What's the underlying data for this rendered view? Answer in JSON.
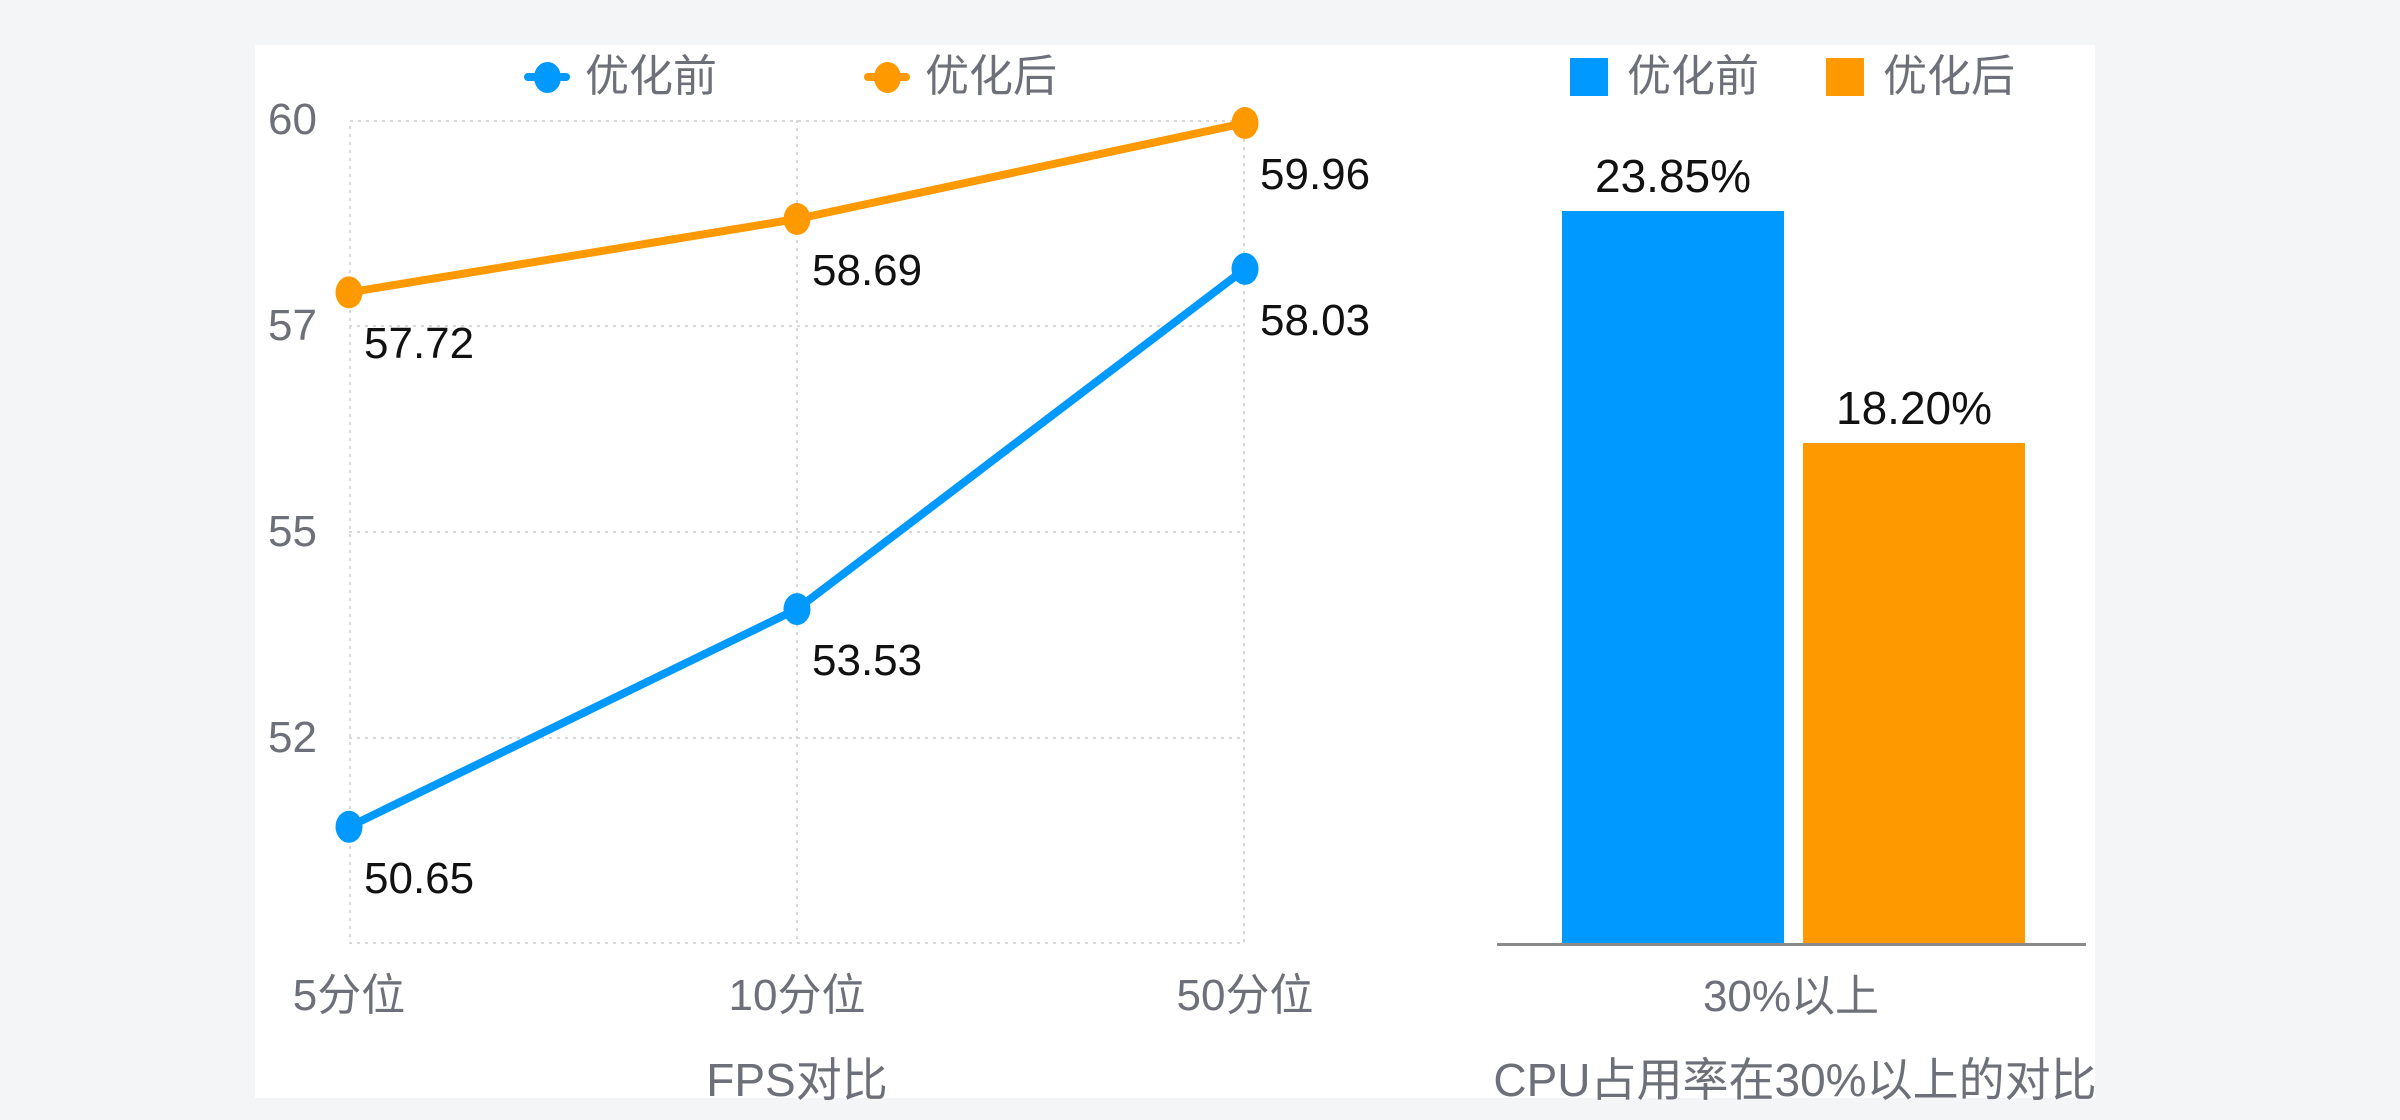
{
  "page": {
    "background": "#f4f5f6",
    "panel_background": "#ffffff"
  },
  "colors": {
    "before": "#0099ff",
    "after": "#ff9900",
    "grid": "#d8d8d8",
    "axis_label": "#6e7079",
    "value_label": "#111111",
    "axis_line": "#8a8a8a"
  },
  "chart_data": [
    {
      "type": "line",
      "title": "FPS对比",
      "categories": [
        "5分位",
        "10分位",
        "50分位"
      ],
      "series": [
        {
          "name": "优化前",
          "color_key": "before",
          "values": [
            50.65,
            53.53,
            58.03
          ]
        },
        {
          "name": "优化后",
          "color_key": "after",
          "values": [
            57.72,
            58.69,
            59.96
          ]
        }
      ],
      "ylim": [
        49.1,
        60
      ],
      "y_tick_labels": [
        "60",
        "57",
        "55",
        "52"
      ],
      "grid": "dashed-box",
      "legend_position": "top",
      "value_decimals": 2
    },
    {
      "type": "bar",
      "title": "CPU占用率在30%以上的对比",
      "categories": [
        "30%以上"
      ],
      "series": [
        {
          "name": "优化前",
          "color_key": "before",
          "values": [
            23.85
          ]
        },
        {
          "name": "优化后",
          "color_key": "after",
          "values": [
            18.2
          ]
        }
      ],
      "ylim": [
        6,
        24
      ],
      "value_suffix": "%",
      "value_decimals": 2,
      "grid": "none",
      "axis_hidden": true,
      "legend_position": "top"
    }
  ]
}
